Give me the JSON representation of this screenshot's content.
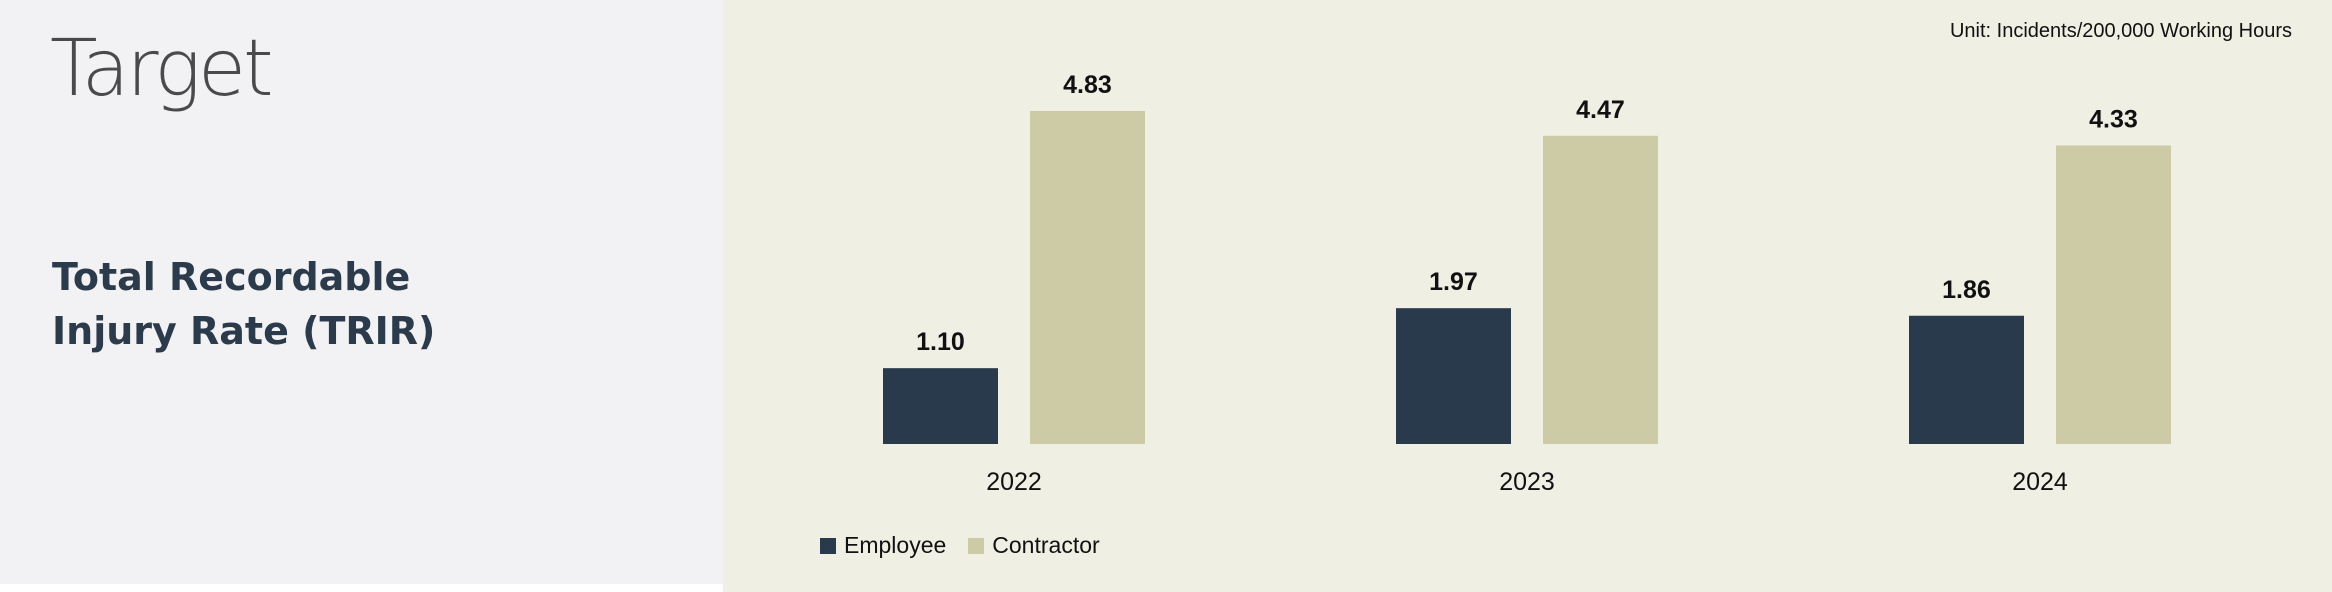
{
  "brand": {
    "logo_text": "Target"
  },
  "panel": {
    "title": "Total Recordable Injury Rate (TRIR)"
  },
  "chart_data": {
    "type": "bar",
    "title": "",
    "note": "Unit: Incidents/200,000 Working Hours",
    "categories": [
      "2022",
      "2023",
      "2024"
    ],
    "series": [
      {
        "name": "Employee",
        "values": [
          1.1,
          1.97,
          1.86
        ],
        "labels": [
          "1.10",
          "1.97",
          "1.86"
        ],
        "color": "#283a4b"
      },
      {
        "name": "Contractor",
        "values": [
          4.83,
          4.47,
          4.33
        ],
        "labels": [
          "4.83",
          "4.47",
          "4.33"
        ],
        "color": "#cdcba5"
      }
    ],
    "ylim": [
      0,
      4.83
    ],
    "grid": false,
    "legend_position": "bottom-left",
    "xlabel": "",
    "ylabel": ""
  }
}
